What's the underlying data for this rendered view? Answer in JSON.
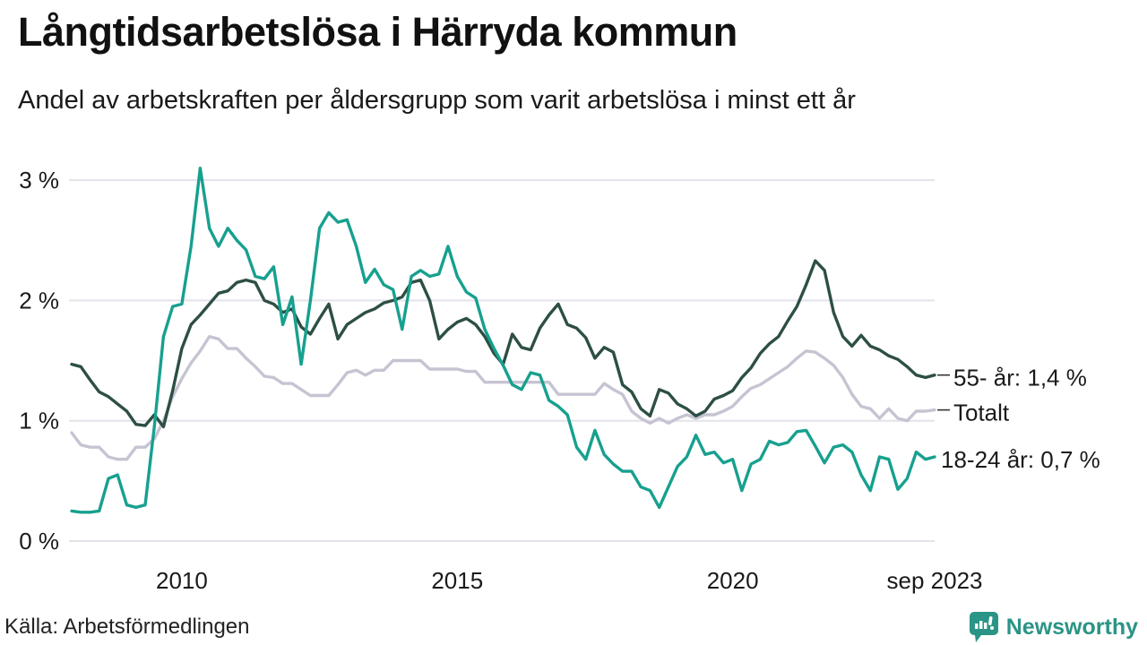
{
  "header": {
    "title": "Långtidsarbetslösa i Härryda kommun",
    "subtitle": "Andel av arbetskraften per åldersgrupp som varit arbetslösa i minst ett år"
  },
  "footer": {
    "source": "Källa: Arbetsförmedlingen",
    "brand": "Newsworthy",
    "brand_color": "#2a9486"
  },
  "chart_data": {
    "type": "line",
    "title": "Långtidsarbetslösa i Härryda kommun",
    "subtitle": "Andel av arbetskraften per åldersgrupp som varit arbetslösa i minst ett år",
    "unit": "percent of labour force",
    "x_start": "2008-01",
    "x_end": "2023-09",
    "step_months": 2,
    "total_months": 188,
    "grid": true,
    "ylim": [
      0,
      3.3
    ],
    "y_ticks": [
      {
        "label": "3 %",
        "value": 3
      },
      {
        "label": "2 %",
        "value": 2
      },
      {
        "label": "1 %",
        "value": 1
      },
      {
        "label": "0 %",
        "value": 0
      }
    ],
    "x_ticks": [
      {
        "label": "2010",
        "month": 24
      },
      {
        "label": "2015",
        "month": 84
      },
      {
        "label": "2020",
        "month": 144
      },
      {
        "label": "sep 2023",
        "month": 188
      }
    ],
    "legend_position": "right-end-labels",
    "draw_order": [
      1,
      0,
      2
    ],
    "series": [
      {
        "name": "55- år",
        "end_label": "55- år: 1,4 %",
        "last_value_label": "1,4 %",
        "color": "#2d4f44",
        "end_tick": true,
        "values": [
          1.47,
          1.45,
          1.34,
          1.24,
          1.2,
          1.14,
          1.08,
          0.97,
          0.96,
          1.05,
          0.95,
          1.25,
          1.6,
          1.8,
          1.88,
          1.97,
          2.06,
          2.08,
          2.15,
          2.17,
          2.15,
          2.0,
          1.97,
          1.9,
          1.93,
          1.78,
          1.72,
          1.85,
          1.97,
          1.68,
          1.8,
          1.85,
          1.9,
          1.93,
          1.98,
          2.0,
          2.03,
          2.15,
          2.17,
          2.0,
          1.68,
          1.76,
          1.82,
          1.85,
          1.8,
          1.7,
          1.56,
          1.47,
          1.72,
          1.61,
          1.59,
          1.77,
          1.88,
          1.97,
          1.8,
          1.77,
          1.69,
          1.52,
          1.61,
          1.57,
          1.3,
          1.24,
          1.1,
          1.04,
          1.26,
          1.23,
          1.14,
          1.1,
          1.04,
          1.08,
          1.18,
          1.21,
          1.25,
          1.36,
          1.44,
          1.56,
          1.64,
          1.7,
          1.83,
          1.95,
          2.13,
          2.33,
          2.25,
          1.9,
          1.7,
          1.62,
          1.71,
          1.62,
          1.59,
          1.54,
          1.51,
          1.45,
          1.38,
          1.36,
          1.38
        ]
      },
      {
        "name": "Totalt",
        "end_label": "Totalt",
        "color": "#c6c4d2",
        "end_tick": true,
        "values": [
          0.9,
          0.8,
          0.78,
          0.78,
          0.7,
          0.68,
          0.68,
          0.78,
          0.78,
          0.85,
          1.0,
          1.2,
          1.35,
          1.48,
          1.58,
          1.7,
          1.68,
          1.6,
          1.6,
          1.52,
          1.45,
          1.37,
          1.36,
          1.31,
          1.31,
          1.26,
          1.21,
          1.21,
          1.21,
          1.3,
          1.4,
          1.42,
          1.38,
          1.42,
          1.42,
          1.5,
          1.5,
          1.5,
          1.5,
          1.43,
          1.43,
          1.43,
          1.43,
          1.41,
          1.41,
          1.32,
          1.32,
          1.32,
          1.32,
          1.32,
          1.32,
          1.32,
          1.32,
          1.22,
          1.22,
          1.22,
          1.22,
          1.22,
          1.31,
          1.26,
          1.22,
          1.08,
          1.02,
          0.98,
          1.02,
          0.98,
          1.02,
          1.05,
          1.02,
          1.05,
          1.05,
          1.08,
          1.12,
          1.2,
          1.27,
          1.3,
          1.35,
          1.4,
          1.45,
          1.52,
          1.58,
          1.57,
          1.52,
          1.46,
          1.36,
          1.22,
          1.12,
          1.1,
          1.02,
          1.1,
          1.02,
          1.0,
          1.08,
          1.08,
          1.09
        ]
      },
      {
        "name": "18-24 år",
        "end_label": "18-24 år: 0,7 %",
        "last_value_label": "0,7 %",
        "color": "#17a08f",
        "end_tick": false,
        "values": [
          0.25,
          0.24,
          0.24,
          0.25,
          0.52,
          0.55,
          0.3,
          0.28,
          0.3,
          0.95,
          1.7,
          1.95,
          1.97,
          2.45,
          3.1,
          2.6,
          2.45,
          2.6,
          2.5,
          2.42,
          2.2,
          2.18,
          2.28,
          1.8,
          2.03,
          1.47,
          2.0,
          2.6,
          2.73,
          2.65,
          2.67,
          2.45,
          2.15,
          2.26,
          2.13,
          2.09,
          1.76,
          2.2,
          2.25,
          2.2,
          2.22,
          2.45,
          2.2,
          2.07,
          2.02,
          1.76,
          1.6,
          1.46,
          1.3,
          1.26,
          1.4,
          1.38,
          1.17,
          1.12,
          1.05,
          0.78,
          0.68,
          0.92,
          0.72,
          0.64,
          0.58,
          0.58,
          0.45,
          0.42,
          0.28,
          0.45,
          0.62,
          0.7,
          0.88,
          0.72,
          0.74,
          0.65,
          0.68,
          0.42,
          0.64,
          0.68,
          0.83,
          0.8,
          0.82,
          0.91,
          0.92,
          0.79,
          0.65,
          0.78,
          0.8,
          0.74,
          0.55,
          0.42,
          0.7,
          0.68,
          0.43,
          0.52,
          0.74,
          0.68,
          0.7
        ]
      }
    ]
  }
}
